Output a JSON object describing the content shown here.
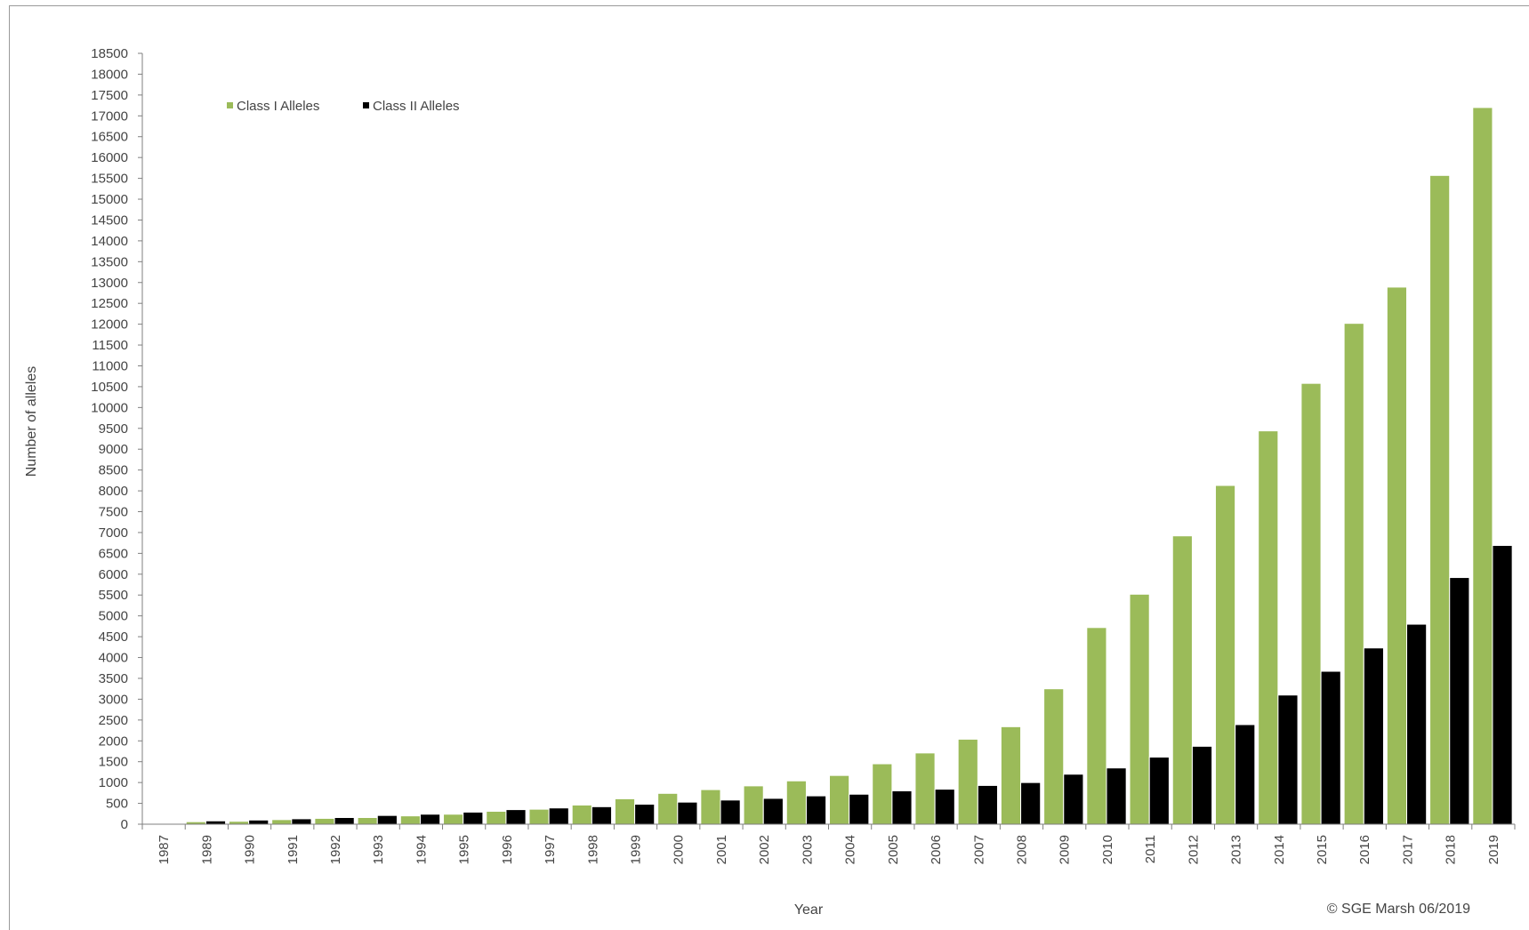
{
  "chart_data": {
    "type": "bar",
    "title": "",
    "xlabel": "Year",
    "ylabel": "Number of alleles",
    "ylim": [
      0,
      18500
    ],
    "ytick_step": 500,
    "grid": false,
    "legend_position": "top-left",
    "categories": [
      "1987",
      "1989",
      "1990",
      "1991",
      "1992",
      "1993",
      "1994",
      "1995",
      "1996",
      "1997",
      "1998",
      "1999",
      "2000",
      "2001",
      "2002",
      "2003",
      "2004",
      "2005",
      "2006",
      "2007",
      "2008",
      "2009",
      "2010",
      "2011",
      "2012",
      "2013",
      "2014",
      "2015",
      "2016",
      "2017",
      "2018",
      "2019"
    ],
    "series": [
      {
        "name": "Class I Alleles",
        "color": "#9bbb59",
        "values": [
          12,
          60,
          70,
          110,
          140,
          160,
          200,
          240,
          310,
          360,
          460,
          610,
          740,
          830,
          920,
          1040,
          1170,
          1450,
          1710,
          2040,
          2340,
          3250,
          4720,
          5520,
          6920,
          8130,
          9440,
          10580,
          12020,
          12890,
          15570,
          17200
        ]
      },
      {
        "name": "Class II Alleles",
        "color": "#000000",
        "values": [
          18,
          80,
          100,
          130,
          160,
          210,
          240,
          290,
          350,
          390,
          420,
          480,
          530,
          580,
          620,
          680,
          720,
          800,
          840,
          930,
          1000,
          1200,
          1350,
          1610,
          1870,
          2390,
          3100,
          3670,
          4230,
          4800,
          5920,
          6690
        ]
      }
    ],
    "annotation": "© SGE Marsh 06/2019"
  }
}
